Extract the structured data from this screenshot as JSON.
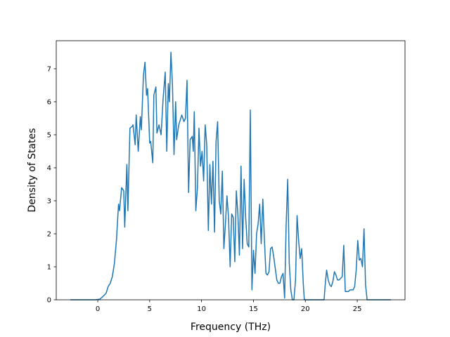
{
  "chart_data": {
    "type": "line",
    "title": "",
    "xlabel": "Frequency (THz)",
    "ylabel": "Density of States",
    "xlim": [
      -4.0,
      29.6
    ],
    "ylim": [
      0,
      7.85
    ],
    "xticks": [
      0,
      5,
      10,
      15,
      20,
      25
    ],
    "xtick_labels": [
      "0",
      "5",
      "10",
      "15",
      "20",
      "25"
    ],
    "yticks": [
      0,
      1,
      2,
      3,
      4,
      5,
      6,
      7
    ],
    "ytick_labels": [
      "0",
      "1",
      "2",
      "3",
      "4",
      "5",
      "6",
      "7"
    ],
    "grid": false,
    "legend": "none",
    "series": [
      {
        "color": "#1f77b4",
        "points": [
          [
            -2.6,
            0.0
          ],
          [
            -0.2,
            0.0
          ],
          [
            0.2,
            0.02
          ],
          [
            0.5,
            0.1
          ],
          [
            0.8,
            0.2
          ],
          [
            1.0,
            0.4
          ],
          [
            1.2,
            0.5
          ],
          [
            1.4,
            0.7
          ],
          [
            1.6,
            1.1
          ],
          [
            1.8,
            1.8
          ],
          [
            2.0,
            2.9
          ],
          [
            2.1,
            2.7
          ],
          [
            2.3,
            3.4
          ],
          [
            2.5,
            3.3
          ],
          [
            2.6,
            2.2
          ],
          [
            2.8,
            4.1
          ],
          [
            2.9,
            2.7
          ],
          [
            3.1,
            5.2
          ],
          [
            3.3,
            5.25
          ],
          [
            3.4,
            5.3
          ],
          [
            3.6,
            4.7
          ],
          [
            3.7,
            5.6
          ],
          [
            3.9,
            4.5
          ],
          [
            4.1,
            5.55
          ],
          [
            4.2,
            5.15
          ],
          [
            4.4,
            6.8
          ],
          [
            4.55,
            7.2
          ],
          [
            4.7,
            6.2
          ],
          [
            4.8,
            6.4
          ],
          [
            5.0,
            4.75
          ],
          [
            5.1,
            4.8
          ],
          [
            5.3,
            4.15
          ],
          [
            5.4,
            6.2
          ],
          [
            5.6,
            6.45
          ],
          [
            5.7,
            5.05
          ],
          [
            5.9,
            5.3
          ],
          [
            6.1,
            5.0
          ],
          [
            6.3,
            6.1
          ],
          [
            6.5,
            6.9
          ],
          [
            6.65,
            4.5
          ],
          [
            6.8,
            6.55
          ],
          [
            6.9,
            6.0
          ],
          [
            7.05,
            7.5
          ],
          [
            7.2,
            6.5
          ],
          [
            7.35,
            4.4
          ],
          [
            7.5,
            6.0
          ],
          [
            7.6,
            4.85
          ],
          [
            7.8,
            5.3
          ],
          [
            8.0,
            5.5
          ],
          [
            8.1,
            5.6
          ],
          [
            8.3,
            5.4
          ],
          [
            8.45,
            5.5
          ],
          [
            8.6,
            6.65
          ],
          [
            8.75,
            3.25
          ],
          [
            8.9,
            4.85
          ],
          [
            9.1,
            4.95
          ],
          [
            9.2,
            4.5
          ],
          [
            9.3,
            5.7
          ],
          [
            9.45,
            2.7
          ],
          [
            9.6,
            3.4
          ],
          [
            9.75,
            5.2
          ],
          [
            9.9,
            4.05
          ],
          [
            10.05,
            4.5
          ],
          [
            10.2,
            3.6
          ],
          [
            10.35,
            5.3
          ],
          [
            10.5,
            4.7
          ],
          [
            10.65,
            2.1
          ],
          [
            10.8,
            4.1
          ],
          [
            10.95,
            2.9
          ],
          [
            11.1,
            4.2
          ],
          [
            11.25,
            2.05
          ],
          [
            11.4,
            4.8
          ],
          [
            11.55,
            5.4
          ],
          [
            11.7,
            3.0
          ],
          [
            11.85,
            2.6
          ],
          [
            12.0,
            3.9
          ],
          [
            12.15,
            1.55
          ],
          [
            12.3,
            2.3
          ],
          [
            12.45,
            3.15
          ],
          [
            12.6,
            2.5
          ],
          [
            12.75,
            1.0
          ],
          [
            12.9,
            2.6
          ],
          [
            13.05,
            2.5
          ],
          [
            13.2,
            1.15
          ],
          [
            13.35,
            3.3
          ],
          [
            13.5,
            2.6
          ],
          [
            13.65,
            1.35
          ],
          [
            13.8,
            4.05
          ],
          [
            13.95,
            1.55
          ],
          [
            14.1,
            3.65
          ],
          [
            14.25,
            2.5
          ],
          [
            14.4,
            1.7
          ],
          [
            14.55,
            1.6
          ],
          [
            14.7,
            5.75
          ],
          [
            14.85,
            0.3
          ],
          [
            15.0,
            1.5
          ],
          [
            15.15,
            0.8
          ],
          [
            15.3,
            2.0
          ],
          [
            15.45,
            2.3
          ],
          [
            15.6,
            2.9
          ],
          [
            15.75,
            1.7
          ],
          [
            15.9,
            3.05
          ],
          [
            16.05,
            1.85
          ],
          [
            16.2,
            0.8
          ],
          [
            16.35,
            0.75
          ],
          [
            16.5,
            0.85
          ],
          [
            16.65,
            1.55
          ],
          [
            16.8,
            1.6
          ],
          [
            16.95,
            1.3
          ],
          [
            17.1,
            0.95
          ],
          [
            17.25,
            0.6
          ],
          [
            17.4,
            0.5
          ],
          [
            17.55,
            0.5
          ],
          [
            17.7,
            0.7
          ],
          [
            17.85,
            0.8
          ],
          [
            18.0,
            0.05
          ],
          [
            18.15,
            2.3
          ],
          [
            18.3,
            3.65
          ],
          [
            18.45,
            1.1
          ],
          [
            18.6,
            0.3
          ],
          [
            18.75,
            0.0
          ],
          [
            18.9,
            0.0
          ],
          [
            19.05,
            0.6
          ],
          [
            19.2,
            2.55
          ],
          [
            19.35,
            1.8
          ],
          [
            19.5,
            1.25
          ],
          [
            19.65,
            1.55
          ],
          [
            19.8,
            0.5
          ],
          [
            19.9,
            0.0
          ],
          [
            21.8,
            0.0
          ],
          [
            21.9,
            0.4
          ],
          [
            22.05,
            0.9
          ],
          [
            22.2,
            0.6
          ],
          [
            22.35,
            0.45
          ],
          [
            22.5,
            0.4
          ],
          [
            22.65,
            0.55
          ],
          [
            22.8,
            0.85
          ],
          [
            22.95,
            0.75
          ],
          [
            23.1,
            0.6
          ],
          [
            23.25,
            0.6
          ],
          [
            23.4,
            0.65
          ],
          [
            23.55,
            0.7
          ],
          [
            23.7,
            1.65
          ],
          [
            23.85,
            0.25
          ],
          [
            24.0,
            0.25
          ],
          [
            24.15,
            0.25
          ],
          [
            24.3,
            0.3
          ],
          [
            24.45,
            0.3
          ],
          [
            24.6,
            0.3
          ],
          [
            24.75,
            0.4
          ],
          [
            24.9,
            0.9
          ],
          [
            25.05,
            1.8
          ],
          [
            25.2,
            1.2
          ],
          [
            25.35,
            1.25
          ],
          [
            25.5,
            1.0
          ],
          [
            25.65,
            2.15
          ],
          [
            25.8,
            0.45
          ],
          [
            25.95,
            0.0
          ],
          [
            28.2,
            0.0
          ]
        ]
      }
    ]
  }
}
